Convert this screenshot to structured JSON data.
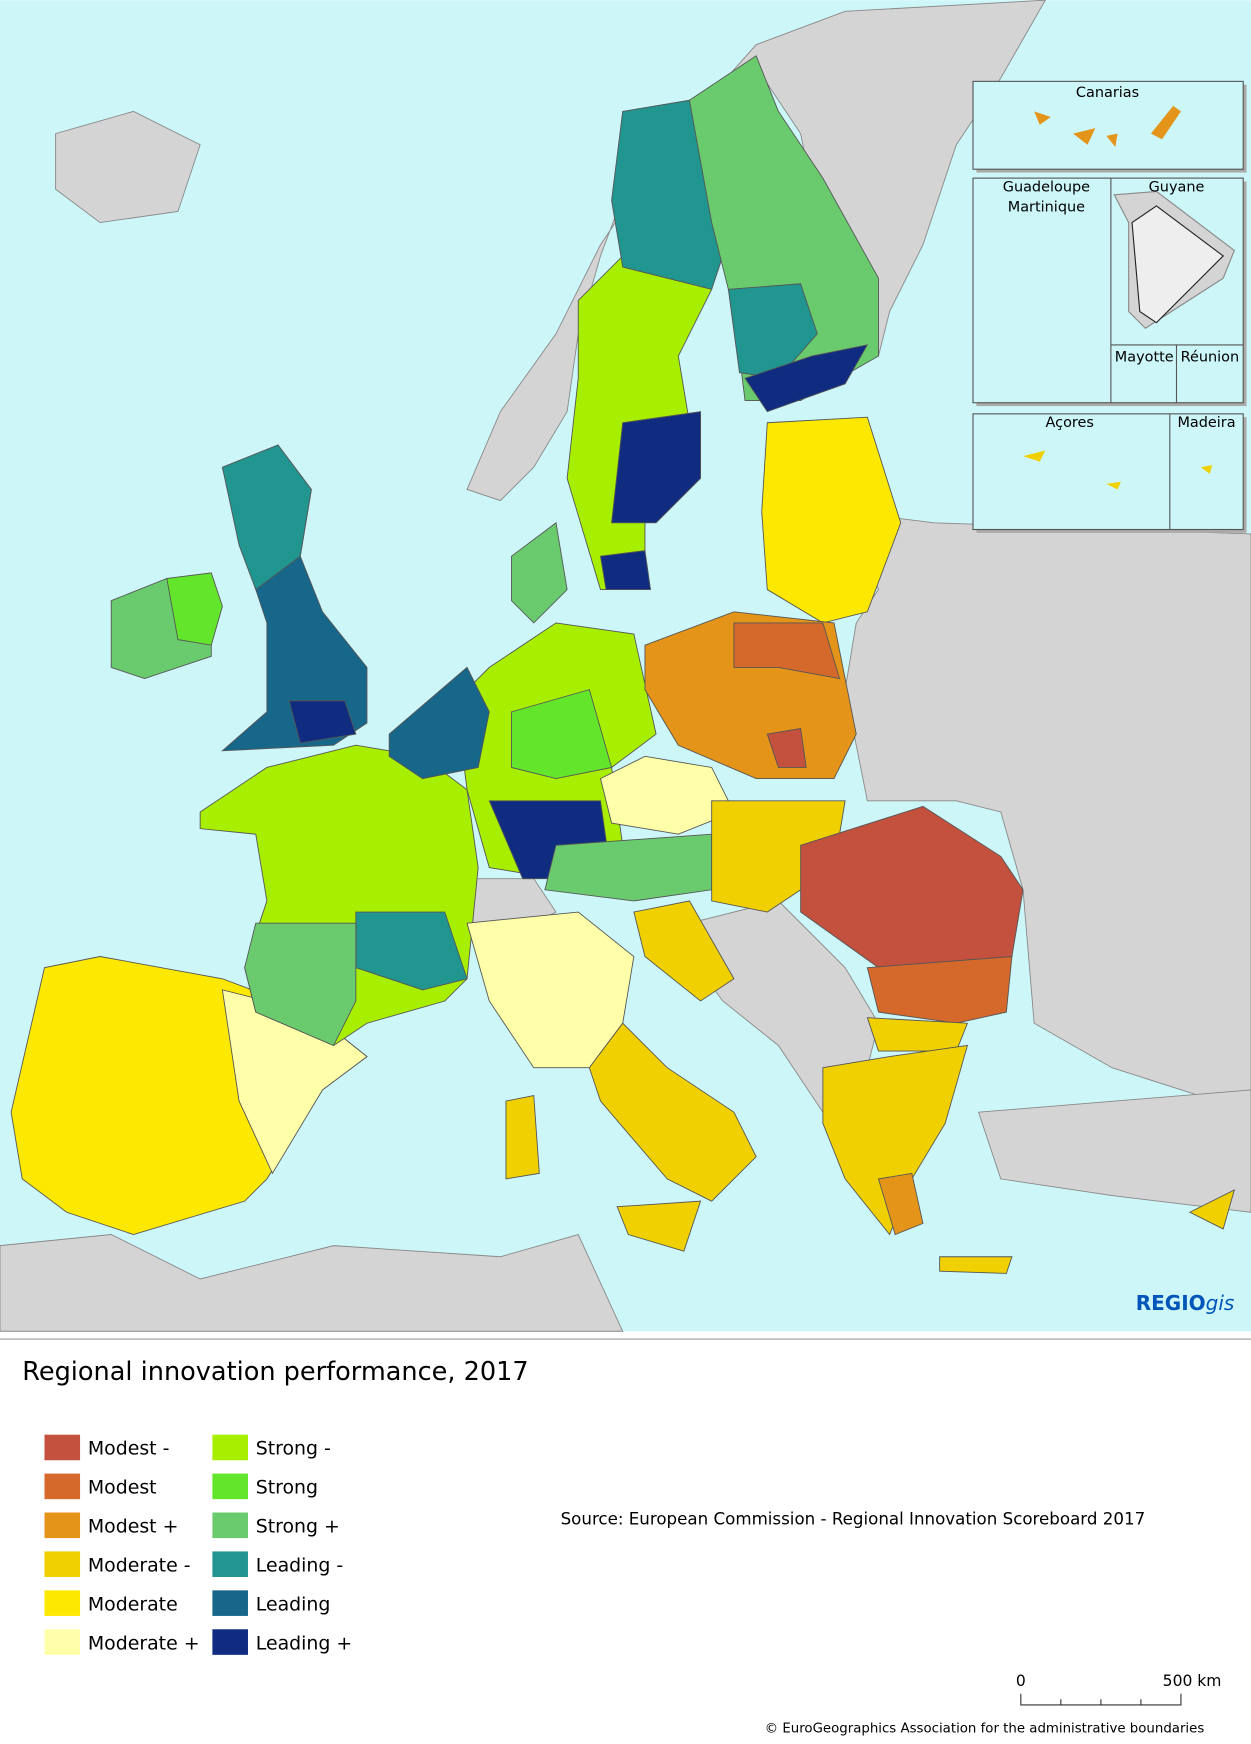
{
  "map": {
    "title": "Regional innovation performance, 2017",
    "legend": [
      {
        "label": "Modest -",
        "color": "#c3513d"
      },
      {
        "label": "Modest",
        "color": "#d5692c"
      },
      {
        "label": "Modest +",
        "color": "#e49418"
      },
      {
        "label": "Moderate -",
        "color": "#f0d000"
      },
      {
        "label": "Moderate",
        "color": "#fce800"
      },
      {
        "label": "Moderate +",
        "color": "#feffa8"
      },
      {
        "label": "Strong -",
        "color": "#a8ee00"
      },
      {
        "label": "Strong",
        "color": "#62e52a"
      },
      {
        "label": "Strong +",
        "color": "#6acb6e"
      },
      {
        "label": "Leading -",
        "color": "#21958f"
      },
      {
        "label": "Leading",
        "color": "#17678a"
      },
      {
        "label": "Leading +",
        "color": "#0f2c80"
      }
    ],
    "insets": [
      "Canarias",
      "Guadeloupe",
      "Martinique",
      "Guyane",
      "Mayotte",
      "Réunion",
      "Açores",
      "Madeira"
    ],
    "source": "Source: European Commission - Regional Innovation Scoreboard 2017",
    "scale_bar": {
      "start": "0",
      "end": "500 km"
    },
    "copyright": "© EuroGeographics Association for the administrative boundaries",
    "logo": {
      "bold": "REGIO",
      "italic": "gis"
    }
  }
}
